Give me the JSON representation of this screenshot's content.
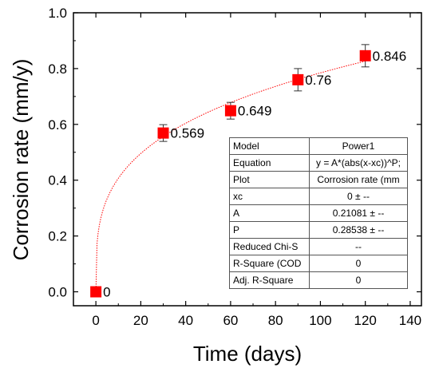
{
  "chart_data": {
    "type": "scatter",
    "xlabel": "Time (days)",
    "ylabel": "Corrosion rate (mm/y)",
    "xlim": [
      -10,
      145
    ],
    "ylim": [
      -0.05,
      1.0
    ],
    "x_ticks": [
      "0",
      "20",
      "40",
      "60",
      "80",
      "100",
      "120",
      "140"
    ],
    "y_ticks": [
      "0.0",
      "0.2",
      "0.4",
      "0.6",
      "0.8",
      "1.0"
    ],
    "x_tick_values": [
      0,
      20,
      40,
      60,
      80,
      100,
      120,
      140
    ],
    "y_tick_values": [
      0,
      0.2,
      0.4,
      0.6,
      0.8,
      1.0
    ],
    "grid": false,
    "marker_color": "#ff0000",
    "fit_color": "#ff0000",
    "series": [
      {
        "x": [
          0,
          30,
          60,
          90,
          120
        ],
        "y": [
          0,
          0.569,
          0.649,
          0.76,
          0.846
        ],
        "error": [
          0,
          0.03,
          0.03,
          0.04,
          0.04
        ],
        "point_labels": [
          "0",
          "0.569",
          "0.649",
          "0.76",
          "0.846"
        ]
      }
    ],
    "fit": {
      "model": "power",
      "xc": 0,
      "A": 0.21081,
      "P": 0.28538
    },
    "fit_table": [
      {
        "key": "Model",
        "value": "Power1"
      },
      {
        "key": "Equation",
        "value": "y = A*(abs(x-xc))^P;"
      },
      {
        "key": "Plot",
        "value": "Corrosion rate (mm"
      },
      {
        "key": "xc",
        "value": "0 ± --"
      },
      {
        "key": "A",
        "value": "0.21081 ± --"
      },
      {
        "key": "P",
        "value": "0.28538 ± --"
      },
      {
        "key": "Reduced Chi-S",
        "value": "--"
      },
      {
        "key": "R-Square (COD",
        "value": "0"
      },
      {
        "key": "Adj. R-Square",
        "value": "0"
      }
    ]
  }
}
